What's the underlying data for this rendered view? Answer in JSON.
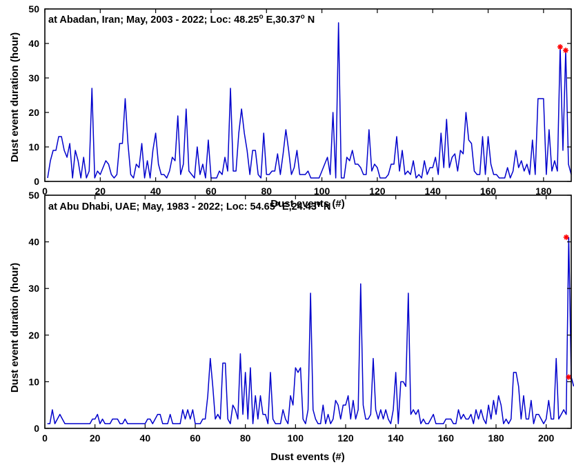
{
  "chart_data": [
    {
      "type": "line",
      "title": "at Abadan, Iran; May, 2003 - 2022; Loc: 48.25",
      "title_deg1": "o",
      "title_mid": " E,30.37",
      "title_deg2": "o",
      "title_end": " N",
      "xlabel": "Dust events (#)",
      "ylabel": "Dust event duration (hour)",
      "xlim": [
        0,
        190
      ],
      "ylim": [
        0,
        50
      ],
      "xticks": [
        0,
        20,
        40,
        60,
        80,
        100,
        120,
        140,
        160,
        180
      ],
      "yticks": [
        0,
        10,
        20,
        30,
        40,
        50
      ],
      "line_color": "#0000cc",
      "marker_color": "#ff0000",
      "series": [
        {
          "values": [
            1,
            6,
            9,
            9,
            13,
            13,
            9,
            7,
            11,
            1,
            9,
            6,
            1,
            7,
            1,
            3,
            27,
            1,
            3,
            2,
            4,
            6,
            5,
            2,
            1,
            2,
            11,
            11,
            24,
            11,
            2,
            1,
            5,
            4,
            11,
            1,
            6,
            1,
            9,
            14,
            5,
            2,
            2,
            1,
            3,
            7,
            6,
            19,
            2,
            5,
            21,
            3,
            2,
            1,
            10,
            2,
            5,
            1,
            12,
            1,
            1,
            1,
            3,
            2,
            7,
            3,
            27,
            3,
            3,
            14,
            21,
            14,
            9,
            2,
            9,
            9,
            2,
            1,
            14,
            2,
            2,
            3,
            3,
            8,
            2,
            8,
            15,
            9,
            2,
            4,
            9,
            2,
            2,
            2,
            3,
            1,
            1,
            1,
            1,
            3,
            5,
            7,
            2,
            20,
            1,
            46,
            1,
            1,
            7,
            6,
            9,
            5,
            5,
            4,
            2,
            2,
            15,
            3,
            5,
            4,
            1,
            1,
            1,
            2,
            5,
            5,
            13,
            3,
            9,
            2,
            3,
            2,
            6,
            1,
            2,
            1,
            6,
            2,
            4,
            4,
            7,
            2,
            14,
            4,
            18,
            4,
            7,
            8,
            3,
            9,
            8,
            20,
            12,
            11,
            3,
            2,
            2,
            13,
            2,
            13,
            5,
            2,
            2,
            1,
            1,
            1,
            4,
            1,
            3,
            9,
            4,
            6,
            3,
            5,
            2,
            12,
            2,
            24,
            24,
            24,
            2,
            15,
            3,
            6,
            3,
            39,
            9,
            38,
            5,
            2
          ],
          "markers": [
            {
              "x": 186,
              "y": 39
            },
            {
              "x": 188,
              "y": 38
            }
          ]
        }
      ]
    },
    {
      "type": "line",
      "title": "at Abu Dhabi, UAE; May, 1983 - 2022; Loc: 54.65",
      "title_deg1": "o",
      "title_mid": " E,24.43",
      "title_deg2": "o",
      "title_end": " N",
      "xlabel": "Dust events (#)",
      "ylabel": "Dust event duration (hour)",
      "xlim": [
        0,
        210
      ],
      "ylim": [
        0,
        50
      ],
      "xticks": [
        0,
        20,
        40,
        60,
        80,
        100,
        120,
        140,
        160,
        180,
        200
      ],
      "yticks": [
        0,
        10,
        20,
        30,
        40,
        50
      ],
      "line_color": "#0000cc",
      "marker_color": "#ff0000",
      "series": [
        {
          "values": [
            1,
            1,
            4,
            1,
            2,
            3,
            2,
            1,
            1,
            1,
            1,
            1,
            1,
            1,
            1,
            1,
            1,
            1,
            2,
            2,
            3,
            1,
            2,
            1,
            1,
            1,
            2,
            2,
            2,
            1,
            1,
            2,
            1,
            1,
            1,
            1,
            1,
            1,
            1,
            1,
            2,
            2,
            1,
            2,
            3,
            3,
            1,
            1,
            1,
            3,
            1,
            1,
            1,
            1,
            4,
            2,
            4,
            2,
            4,
            1,
            1,
            1,
            2,
            2,
            7,
            15,
            9,
            2,
            3,
            2,
            14,
            14,
            2,
            1,
            5,
            4,
            2,
            16,
            3,
            12,
            2,
            13,
            1,
            7,
            2,
            7,
            3,
            3,
            1,
            12,
            2,
            1,
            1,
            1,
            4,
            2,
            1,
            7,
            5,
            13,
            12,
            13,
            2,
            1,
            4,
            29,
            4,
            2,
            1,
            1,
            5,
            1,
            3,
            1,
            2,
            6,
            5,
            2,
            5,
            5,
            7,
            2,
            6,
            2,
            4,
            31,
            5,
            2,
            2,
            3,
            15,
            4,
            2,
            4,
            2,
            4,
            2,
            1,
            4,
            12,
            1,
            10,
            10,
            9,
            29,
            3,
            4,
            3,
            4,
            1,
            2,
            1,
            1,
            2,
            3,
            1,
            1,
            1,
            1,
            2,
            2,
            2,
            1,
            1,
            4,
            2,
            3,
            2,
            2,
            3,
            1,
            4,
            2,
            4,
            2,
            1,
            5,
            2,
            6,
            3,
            7,
            5,
            1,
            2,
            1,
            2,
            12,
            12,
            9,
            2,
            7,
            2,
            2,
            6,
            1,
            3,
            3,
            2,
            1,
            2,
            6,
            2,
            2,
            15,
            2,
            3,
            4,
            3,
            41,
            11,
            9
          ],
          "markers": [
            {
              "x": 208,
              "y": 41
            },
            {
              "x": 209,
              "y": 11
            }
          ]
        }
      ]
    }
  ]
}
